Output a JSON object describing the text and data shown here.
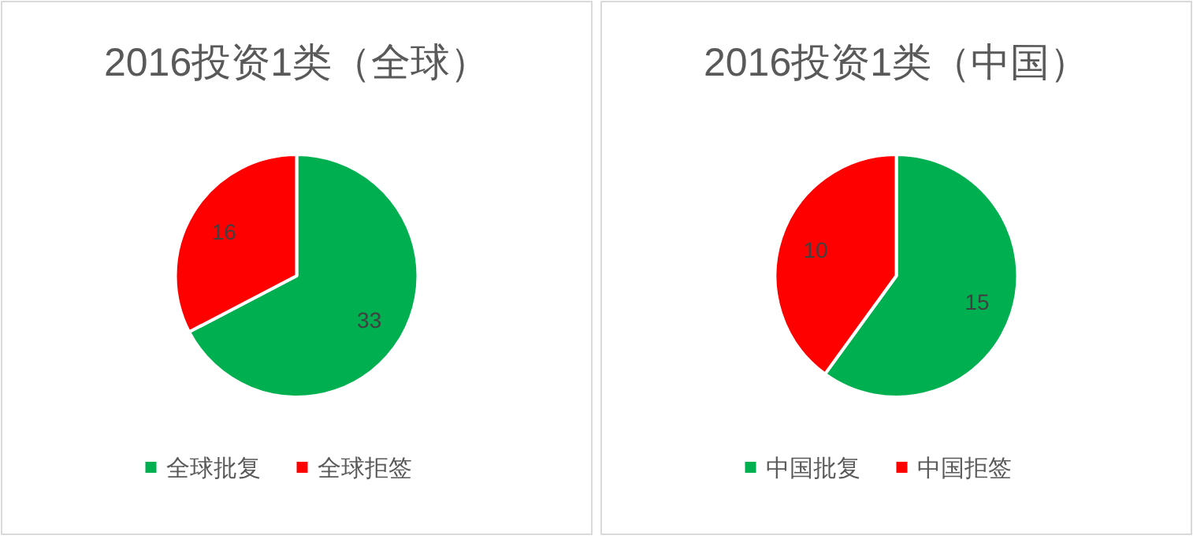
{
  "chart_data": [
    {
      "type": "pie",
      "title": "2016投资1类（全球）",
      "categories": [
        "全球批复",
        "全球拒签"
      ],
      "values": [
        33,
        16
      ],
      "colors": [
        "#00b050",
        "#ff0000"
      ],
      "data_labels": true,
      "legend": "bottom"
    },
    {
      "type": "pie",
      "title": "2016投资1类（中国）",
      "categories": [
        "中国批复",
        "中国拒签"
      ],
      "values": [
        15,
        10
      ],
      "colors": [
        "#00b050",
        "#ff0000"
      ],
      "data_labels": true,
      "legend": "bottom"
    }
  ]
}
